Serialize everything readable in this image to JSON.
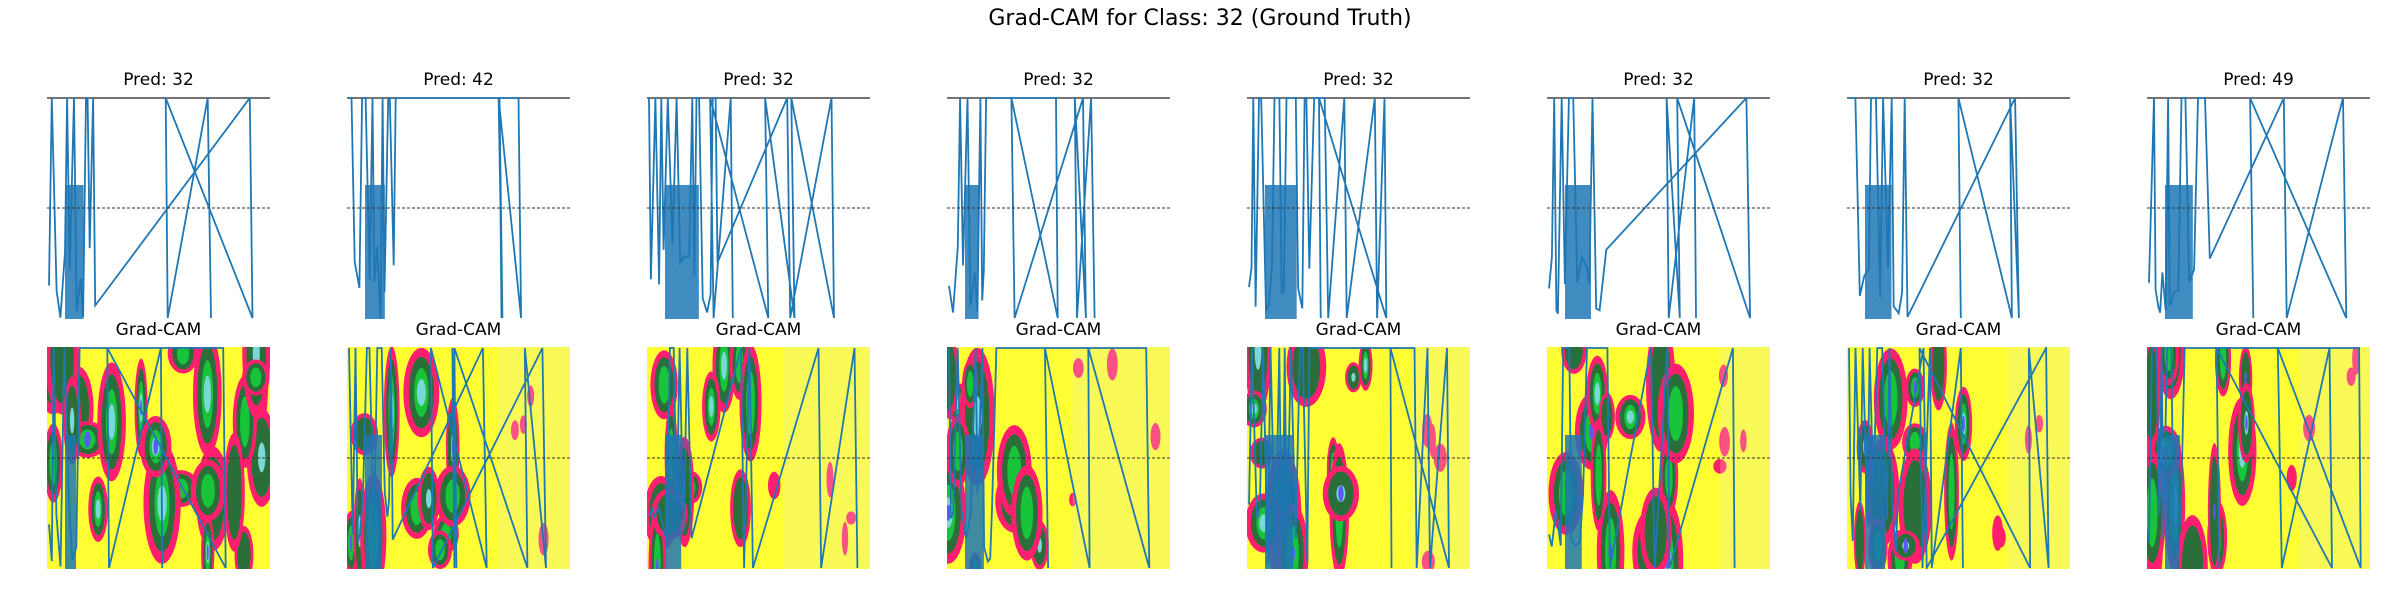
{
  "figure": {
    "title": "Grad-CAM for Class: 32 (Ground Truth)",
    "line_color": "#1f77b4",
    "heat_colors": [
      "#ffff33",
      "#ff1f6e",
      "#2a6f3a",
      "#18c43a",
      "#7bd8d8",
      "#5a5aff",
      "#e8e8c8"
    ]
  },
  "panels": [
    {
      "pred_title": "Pred: 32",
      "cam_title": "Grad-CAM"
    },
    {
      "pred_title": "Pred: 42",
      "cam_title": "Grad-CAM"
    },
    {
      "pred_title": "Pred: 32",
      "cam_title": "Grad-CAM"
    },
    {
      "pred_title": "Pred: 32",
      "cam_title": "Grad-CAM"
    },
    {
      "pred_title": "Pred: 32",
      "cam_title": "Grad-CAM"
    },
    {
      "pred_title": "Pred: 32",
      "cam_title": "Grad-CAM"
    },
    {
      "pred_title": "Pred: 32",
      "cam_title": "Grad-CAM"
    },
    {
      "pred_title": "Pred: 49",
      "cam_title": "Grad-CAM"
    }
  ],
  "chart_data": {
    "type": "line",
    "panel_count": 8,
    "columns": [
      "Pred: 32",
      "Pred: 42",
      "Pred: 32",
      "Pred: 32",
      "Pred: 32",
      "Pred: 32",
      "Pred: 32",
      "Pred: 49"
    ],
    "rows": [
      "signal",
      "Grad-CAM overlay"
    ],
    "axes_visible": false,
    "reference_line": "dashed horizontal at mid-height"
  }
}
